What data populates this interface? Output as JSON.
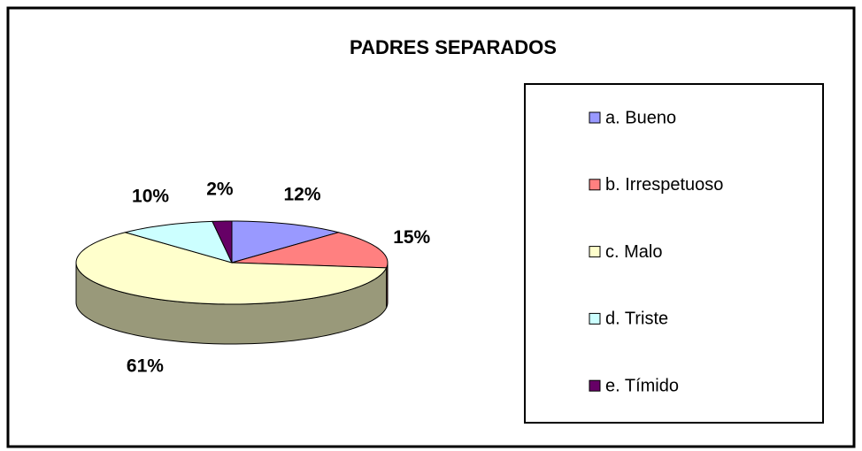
{
  "chart_data": {
    "type": "pie3d",
    "title": "PADRES SEPARADOS",
    "categories": [
      "a. Bueno",
      "b. Irrespetuoso",
      "c. Malo",
      "d. Triste",
      "e. Tímido"
    ],
    "values": [
      12,
      15,
      61,
      10,
      2
    ],
    "value_labels": [
      "12%",
      "15%",
      "61%",
      "10%",
      "2%"
    ],
    "colors": [
      "#9999ff",
      "#ff8080",
      "#ffffcc",
      "#ccffff",
      "#660066"
    ],
    "legend": "right"
  }
}
